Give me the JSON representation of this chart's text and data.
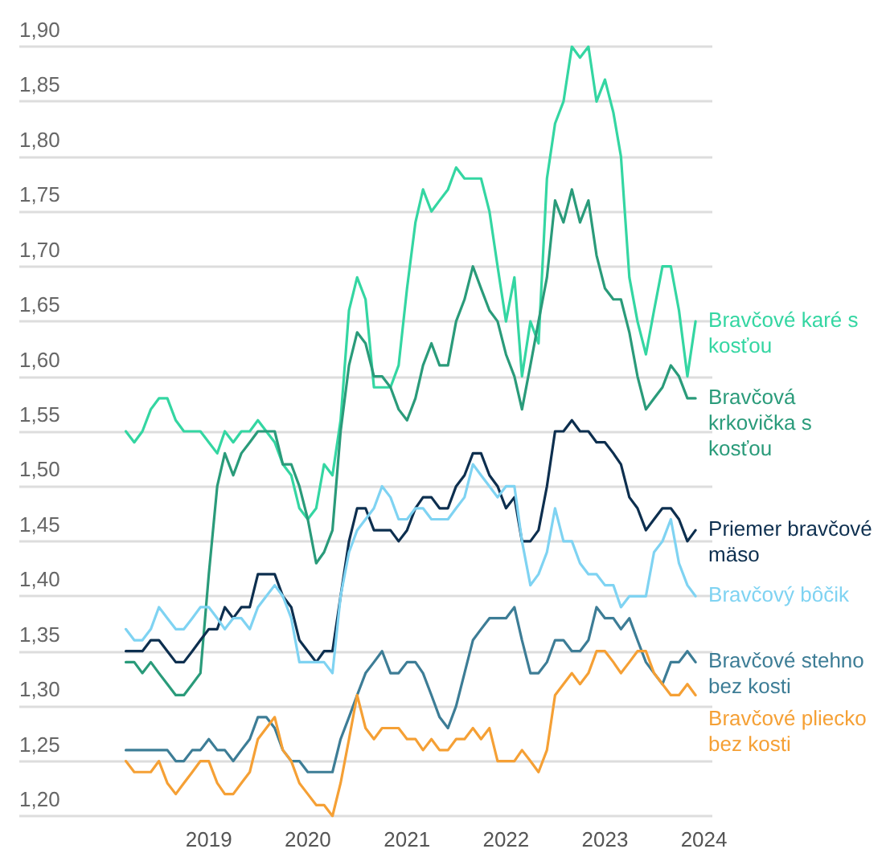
{
  "chart_data": {
    "type": "line",
    "grid": "y",
    "legend": false,
    "marker": "none",
    "line_style": "solid",
    "x": [
      "2018-03",
      "2018-04",
      "2018-05",
      "2018-06",
      "2018-07",
      "2018-08",
      "2018-09",
      "2018-10",
      "2018-11",
      "2018-12",
      "2019-01",
      "2019-02",
      "2019-03",
      "2019-04",
      "2019-05",
      "2019-06",
      "2019-07",
      "2019-08",
      "2019-09",
      "2019-10",
      "2019-11",
      "2019-12",
      "2020-01",
      "2020-02",
      "2020-03",
      "2020-04",
      "2020-05",
      "2020-06",
      "2020-07",
      "2020-08",
      "2020-09",
      "2020-10",
      "2020-11",
      "2020-12",
      "2021-01",
      "2021-02",
      "2021-03",
      "2021-04",
      "2021-05",
      "2021-06",
      "2021-07",
      "2021-08",
      "2021-09",
      "2021-10",
      "2021-11",
      "2021-12",
      "2022-01",
      "2022-02",
      "2022-03",
      "2022-04",
      "2022-05",
      "2022-06",
      "2022-07",
      "2022-08",
      "2022-09",
      "2022-10",
      "2022-11",
      "2022-12",
      "2023-01",
      "2023-02",
      "2023-03",
      "2023-04",
      "2023-05",
      "2023-06",
      "2023-07",
      "2023-08",
      "2023-09",
      "2023-10",
      "2023-11",
      "2023-12"
    ],
    "xlim": [
      "2017-02",
      "2024-02"
    ],
    "xticks": [
      "2019",
      "2020",
      "2021",
      "2022",
      "2023",
      "2024"
    ],
    "ylim": [
      1.2,
      1.9
    ],
    "yticks": [
      {
        "value": 1.2,
        "label": "1,20"
      },
      {
        "value": 1.25,
        "label": "1,25"
      },
      {
        "value": 1.3,
        "label": "1,30"
      },
      {
        "value": 1.35,
        "label": "1,35"
      },
      {
        "value": 1.4,
        "label": "1,40"
      },
      {
        "value": 1.45,
        "label": "1,45"
      },
      {
        "value": 1.5,
        "label": "1,50"
      },
      {
        "value": 1.55,
        "label": "1,55"
      },
      {
        "value": 1.6,
        "label": "1,60"
      },
      {
        "value": 1.65,
        "label": "1,65"
      },
      {
        "value": 1.7,
        "label": "1,70"
      },
      {
        "value": 1.75,
        "label": "1,75"
      },
      {
        "value": 1.8,
        "label": "1,80"
      },
      {
        "value": 1.85,
        "label": "1,85"
      },
      {
        "value": 1.9,
        "label": "1,90"
      }
    ],
    "series": [
      {
        "name": "Bravčové karé s kosťou",
        "color": "#34d6a2",
        "values": [
          1.55,
          1.54,
          1.55,
          1.57,
          1.58,
          1.58,
          1.56,
          1.55,
          1.55,
          1.55,
          1.54,
          1.53,
          1.55,
          1.54,
          1.55,
          1.55,
          1.56,
          1.55,
          1.54,
          1.52,
          1.51,
          1.48,
          1.47,
          1.48,
          1.52,
          1.51,
          1.56,
          1.66,
          1.69,
          1.67,
          1.59,
          1.59,
          1.59,
          1.61,
          1.68,
          1.74,
          1.77,
          1.75,
          1.76,
          1.77,
          1.79,
          1.78,
          1.78,
          1.78,
          1.75,
          1.7,
          1.65,
          1.69,
          1.6,
          1.65,
          1.63,
          1.78,
          1.83,
          1.85,
          1.9,
          1.89,
          1.9,
          1.85,
          1.87,
          1.84,
          1.8,
          1.69,
          1.65,
          1.62,
          1.66,
          1.7,
          1.7,
          1.66,
          1.6,
          1.65
        ]
      },
      {
        "name": "Bravčová krkovička s kosťou",
        "color": "#2a9b7a",
        "values": [
          1.34,
          1.34,
          1.33,
          1.34,
          1.33,
          1.32,
          1.31,
          1.31,
          1.32,
          1.33,
          1.42,
          1.5,
          1.53,
          1.51,
          1.53,
          1.54,
          1.55,
          1.55,
          1.55,
          1.52,
          1.52,
          1.5,
          1.47,
          1.43,
          1.44,
          1.46,
          1.55,
          1.61,
          1.64,
          1.63,
          1.6,
          1.6,
          1.59,
          1.57,
          1.56,
          1.58,
          1.61,
          1.63,
          1.61,
          1.61,
          1.65,
          1.67,
          1.7,
          1.68,
          1.66,
          1.65,
          1.62,
          1.6,
          1.57,
          1.61,
          1.65,
          1.69,
          1.76,
          1.74,
          1.77,
          1.74,
          1.76,
          1.71,
          1.68,
          1.67,
          1.67,
          1.64,
          1.6,
          1.57,
          1.58,
          1.59,
          1.61,
          1.6,
          1.58,
          1.58
        ]
      },
      {
        "name": "Priemer bravčové mäso",
        "color": "#0d2f4f",
        "values": [
          1.35,
          1.35,
          1.35,
          1.36,
          1.36,
          1.35,
          1.34,
          1.34,
          1.35,
          1.36,
          1.37,
          1.37,
          1.39,
          1.38,
          1.39,
          1.39,
          1.42,
          1.42,
          1.42,
          1.4,
          1.39,
          1.36,
          1.35,
          1.34,
          1.35,
          1.35,
          1.4,
          1.45,
          1.48,
          1.48,
          1.46,
          1.46,
          1.46,
          1.45,
          1.46,
          1.48,
          1.49,
          1.49,
          1.48,
          1.48,
          1.5,
          1.51,
          1.53,
          1.53,
          1.51,
          1.5,
          1.48,
          1.49,
          1.45,
          1.45,
          1.46,
          1.5,
          1.55,
          1.55,
          1.56,
          1.55,
          1.55,
          1.54,
          1.54,
          1.53,
          1.52,
          1.49,
          1.48,
          1.46,
          1.47,
          1.48,
          1.48,
          1.47,
          1.45,
          1.46
        ]
      },
      {
        "name": "Bravčový bôčik",
        "color": "#7fd3f2",
        "values": [
          1.37,
          1.36,
          1.36,
          1.37,
          1.39,
          1.38,
          1.37,
          1.37,
          1.38,
          1.39,
          1.39,
          1.38,
          1.37,
          1.38,
          1.38,
          1.37,
          1.39,
          1.4,
          1.41,
          1.4,
          1.38,
          1.34,
          1.34,
          1.34,
          1.34,
          1.33,
          1.4,
          1.44,
          1.46,
          1.47,
          1.48,
          1.5,
          1.49,
          1.47,
          1.47,
          1.48,
          1.48,
          1.47,
          1.47,
          1.47,
          1.48,
          1.49,
          1.52,
          1.51,
          1.5,
          1.49,
          1.5,
          1.5,
          1.45,
          1.41,
          1.42,
          1.44,
          1.48,
          1.45,
          1.45,
          1.43,
          1.42,
          1.42,
          1.41,
          1.41,
          1.39,
          1.4,
          1.4,
          1.4,
          1.44,
          1.45,
          1.47,
          1.43,
          1.41,
          1.4
        ]
      },
      {
        "name": "Bravčové stehno bez kosti",
        "color": "#3d7d96",
        "values": [
          1.26,
          1.26,
          1.26,
          1.26,
          1.26,
          1.26,
          1.25,
          1.25,
          1.26,
          1.26,
          1.27,
          1.26,
          1.26,
          1.25,
          1.26,
          1.27,
          1.29,
          1.29,
          1.28,
          1.26,
          1.25,
          1.25,
          1.24,
          1.24,
          1.24,
          1.24,
          1.27,
          1.29,
          1.31,
          1.33,
          1.34,
          1.35,
          1.33,
          1.33,
          1.34,
          1.34,
          1.33,
          1.31,
          1.29,
          1.28,
          1.3,
          1.33,
          1.36,
          1.37,
          1.38,
          1.38,
          1.38,
          1.39,
          1.36,
          1.33,
          1.33,
          1.34,
          1.36,
          1.36,
          1.35,
          1.35,
          1.36,
          1.39,
          1.38,
          1.38,
          1.37,
          1.38,
          1.36,
          1.34,
          1.33,
          1.32,
          1.34,
          1.34,
          1.35,
          1.34
        ]
      },
      {
        "name": "Bravčové pliecko bez kosti",
        "color": "#f5a035",
        "values": [
          1.25,
          1.24,
          1.24,
          1.24,
          1.25,
          1.23,
          1.22,
          1.23,
          1.24,
          1.25,
          1.25,
          1.23,
          1.22,
          1.22,
          1.23,
          1.24,
          1.27,
          1.28,
          1.29,
          1.26,
          1.25,
          1.23,
          1.22,
          1.21,
          1.21,
          1.2,
          1.23,
          1.27,
          1.31,
          1.28,
          1.27,
          1.28,
          1.28,
          1.28,
          1.27,
          1.27,
          1.26,
          1.27,
          1.26,
          1.26,
          1.27,
          1.27,
          1.28,
          1.27,
          1.28,
          1.25,
          1.25,
          1.25,
          1.26,
          1.25,
          1.24,
          1.26,
          1.31,
          1.32,
          1.33,
          1.32,
          1.33,
          1.35,
          1.35,
          1.34,
          1.33,
          1.34,
          1.35,
          1.35,
          1.33,
          1.32,
          1.31,
          1.31,
          1.32,
          1.31
        ]
      }
    ]
  }
}
